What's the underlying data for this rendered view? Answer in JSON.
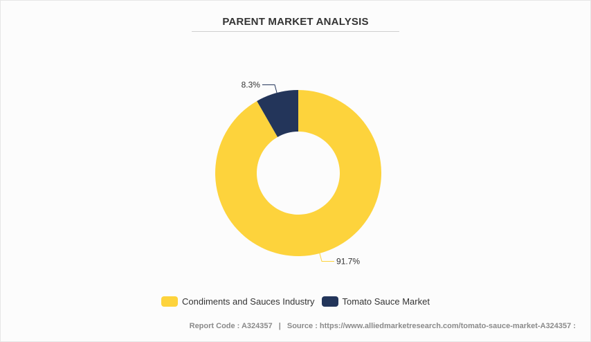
{
  "title": "PARENT MARKET ANALYSIS",
  "chart_data": {
    "type": "pie",
    "style": "donut",
    "slices": [
      {
        "label": "Condiments and Sauces Industry",
        "value": 91.7,
        "display": "91.7%",
        "color": "#fdd33c"
      },
      {
        "label": "Tomato Sauce Market",
        "value": 8.3,
        "display": "8.3%",
        "color": "#23355a"
      }
    ],
    "legend_position": "bottom"
  },
  "legend": [
    {
      "label": "Condiments and Sauces Industry",
      "color": "#fdd33c"
    },
    {
      "label": "Tomato Sauce Market",
      "color": "#23355a"
    }
  ],
  "footer": {
    "report_code_label": "Report Code : A324357",
    "separator": "|",
    "source_label": "Source : https://www.alliedmarketresearch.com/tomato-sauce-market-A324357 :"
  }
}
